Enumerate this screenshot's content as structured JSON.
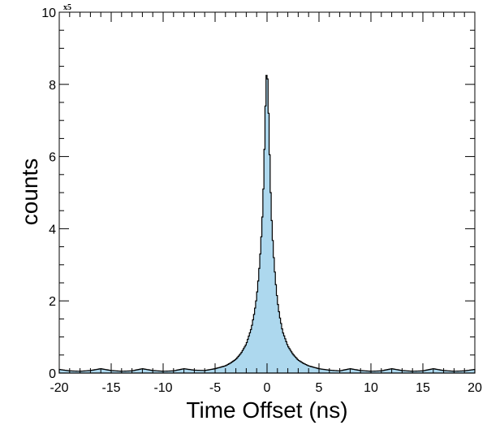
{
  "chart_data": {
    "type": "area",
    "xlabel": "Time Offset (ns)",
    "ylabel": "counts",
    "y_multiplier": "x5",
    "xlim": [
      -20,
      20
    ],
    "ylim": [
      0,
      10
    ],
    "x_ticks": [
      -20,
      -15,
      -10,
      -5,
      0,
      5,
      10,
      15,
      20
    ],
    "y_ticks": [
      0,
      2,
      4,
      6,
      8,
      10
    ],
    "grid": false,
    "fill_color": "#add8ee",
    "line_color": "#000000",
    "series": [
      {
        "x": [
          -20,
          -19,
          -18,
          -17,
          -16,
          -15,
          -14,
          -13,
          -12,
          -11,
          -10,
          -9,
          -8,
          -7,
          -6,
          -5,
          -4,
          -3.5,
          -3,
          -2.5,
          -2,
          -1.5,
          -1.2,
          -1,
          -0.8,
          -0.6,
          -0.4,
          -0.3,
          -0.2,
          -0.1,
          0,
          0.1,
          0.2,
          0.3,
          0.4,
          0.6,
          0.8,
          1,
          1.2,
          1.5,
          2,
          2.5,
          3,
          3.5,
          4,
          5,
          6,
          7,
          8,
          9,
          10,
          11,
          12,
          13,
          14,
          15,
          16,
          17,
          18,
          19,
          20
        ],
        "y": [
          0.1,
          0.06,
          0.05,
          0.07,
          0.12,
          0.07,
          0.05,
          0.06,
          0.12,
          0.07,
          0.05,
          0.06,
          0.12,
          0.08,
          0.07,
          0.12,
          0.2,
          0.28,
          0.38,
          0.55,
          0.8,
          1.25,
          1.7,
          2.1,
          2.7,
          3.5,
          4.6,
          5.6,
          6.8,
          8.0,
          8.5,
          7.8,
          6.6,
          5.5,
          4.5,
          3.4,
          2.6,
          2.0,
          1.6,
          1.15,
          0.75,
          0.52,
          0.36,
          0.27,
          0.2,
          0.12,
          0.08,
          0.06,
          0.12,
          0.07,
          0.05,
          0.06,
          0.12,
          0.07,
          0.05,
          0.06,
          0.12,
          0.07,
          0.05,
          0.06,
          0.1
        ]
      }
    ]
  }
}
